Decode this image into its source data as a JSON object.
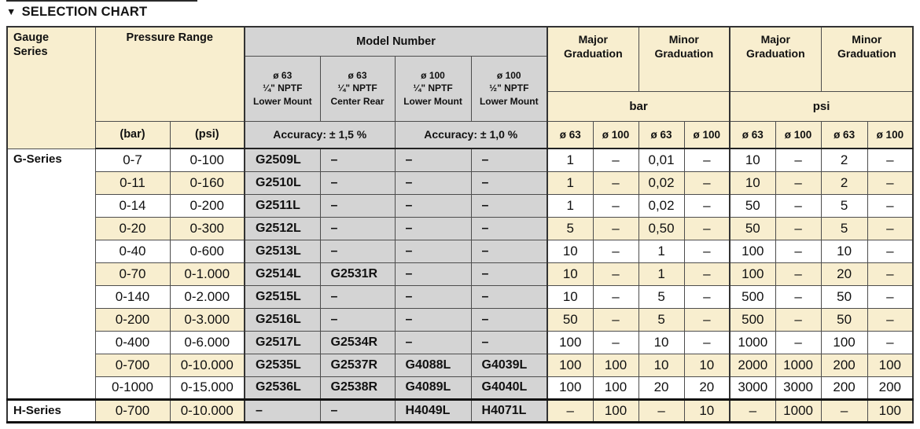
{
  "title": {
    "marker": "▼",
    "text": "SELECTION CHART"
  },
  "colors": {
    "header_cream": "#F8EECF",
    "model_gray": "#D4D4D4",
    "row_alt_cream": "#F8EECF",
    "border_thin": "#4d4d4d",
    "border_thick": "#111111",
    "text": "#111111"
  },
  "table": {
    "header": {
      "gauge_series": "Gauge\nSeries",
      "pressure_range": "Pressure Range",
      "model_number": "Model Number",
      "model_columns": [
        "ø 63\n¼\" NPTF\nLower Mount",
        "ø 63\n¼\" NPTF\nCenter Rear",
        "ø 100\n¼\" NPTF\nLower Mount",
        "ø 100\n½\" NPTF\nLower Mount"
      ],
      "accuracy_left": "Accuracy: ± 1,5 %",
      "accuracy_right": "Accuracy: ± 1,0 %",
      "graduation_groups": [
        "Major\nGraduation",
        "Minor\nGraduation",
        "Major\nGraduation",
        "Minor\nGraduation"
      ],
      "unit_groups": [
        "bar",
        "psi"
      ],
      "pressure_units": [
        "(bar)",
        "(psi)"
      ],
      "dia_columns": [
        "ø 63",
        "ø 100",
        "ø 63",
        "ø 100",
        "ø 63",
        "ø 100",
        "ø 63",
        "ø 100"
      ]
    },
    "rows": [
      {
        "series": "G-Series",
        "series_rowspan": 11,
        "pressure": [
          "0-7",
          "0-100"
        ],
        "models": [
          "G2509L",
          "–",
          "–",
          "–"
        ],
        "graduations": [
          "1",
          "–",
          "0,01",
          "–",
          "10",
          "–",
          "2",
          "–"
        ]
      },
      {
        "series": null,
        "pressure": [
          "0-11",
          "0-160"
        ],
        "models": [
          "G2510L",
          "–",
          "–",
          "–"
        ],
        "graduations": [
          "1",
          "–",
          "0,02",
          "–",
          "10",
          "–",
          "2",
          "–"
        ]
      },
      {
        "series": null,
        "pressure": [
          "0-14",
          "0-200"
        ],
        "models": [
          "G2511L",
          "–",
          "–",
          "–"
        ],
        "graduations": [
          "1",
          "–",
          "0,02",
          "–",
          "50",
          "–",
          "5",
          "–"
        ]
      },
      {
        "series": null,
        "pressure": [
          "0-20",
          "0-300"
        ],
        "models": [
          "G2512L",
          "–",
          "–",
          "–"
        ],
        "graduations": [
          "5",
          "–",
          "0,50",
          "–",
          "50",
          "–",
          "5",
          "–"
        ]
      },
      {
        "series": null,
        "pressure": [
          "0-40",
          "0-600"
        ],
        "models": [
          "G2513L",
          "–",
          "–",
          "–"
        ],
        "graduations": [
          "10",
          "–",
          "1",
          "–",
          "100",
          "–",
          "10",
          "–"
        ]
      },
      {
        "series": null,
        "pressure": [
          "0-70",
          "0-1.000"
        ],
        "models": [
          "G2514L",
          "G2531R",
          "–",
          "–"
        ],
        "graduations": [
          "10",
          "–",
          "1",
          "–",
          "100",
          "–",
          "20",
          "–"
        ]
      },
      {
        "series": null,
        "pressure": [
          "0-140",
          "0-2.000"
        ],
        "models": [
          "G2515L",
          "–",
          "–",
          "–"
        ],
        "graduations": [
          "10",
          "–",
          "5",
          "–",
          "500",
          "–",
          "50",
          "–"
        ]
      },
      {
        "series": null,
        "pressure": [
          "0-200",
          "0-3.000"
        ],
        "models": [
          "G2516L",
          "–",
          "–",
          "–"
        ],
        "graduations": [
          "50",
          "–",
          "5",
          "–",
          "500",
          "–",
          "50",
          "–"
        ]
      },
      {
        "series": null,
        "pressure": [
          "0-400",
          "0-6.000"
        ],
        "models": [
          "G2517L",
          "G2534R",
          "–",
          "–"
        ],
        "graduations": [
          "100",
          "–",
          "10",
          "–",
          "1000",
          "–",
          "100",
          "–"
        ]
      },
      {
        "series": null,
        "pressure": [
          "0-700",
          "0-10.000"
        ],
        "models": [
          "G2535L",
          "G2537R",
          "G4088L",
          "G4039L"
        ],
        "graduations": [
          "100",
          "100",
          "10",
          "10",
          "2000",
          "1000",
          "200",
          "100"
        ]
      },
      {
        "series": null,
        "pressure": [
          "0-1000",
          "0-15.000"
        ],
        "models": [
          "G2536L",
          "G2538R",
          "G4089L",
          "G4040L"
        ],
        "graduations": [
          "100",
          "100",
          "20",
          "20",
          "3000",
          "3000",
          "200",
          "200"
        ]
      },
      {
        "series": "H-Series",
        "series_rowspan": 1,
        "pressure": [
          "0-700",
          "0-10.000"
        ],
        "models": [
          "–",
          "–",
          "H4049L",
          "H4071L"
        ],
        "graduations": [
          "–",
          "100",
          "–",
          "10",
          "–",
          "1000",
          "–",
          "100"
        ]
      }
    ]
  }
}
